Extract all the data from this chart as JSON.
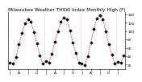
{
  "title": "Milwaukee Weather THSW Index Monthly High (F)",
  "line_color": "#FF0000",
  "marker_color": "#000000",
  "bg_color": "#ffffff",
  "grid_color": "#888888",
  "ylim": [
    10,
    145
  ],
  "yticks": [
    20,
    40,
    60,
    80,
    100,
    120,
    140
  ],
  "values": [
    25,
    22,
    38,
    68,
    95,
    118,
    128,
    122,
    98,
    70,
    42,
    22,
    28,
    25,
    45,
    75,
    100,
    122,
    132,
    128,
    102,
    72,
    48,
    25,
    22,
    18,
    40,
    72,
    105,
    130,
    138,
    128,
    100,
    68,
    44,
    22,
    26,
    24,
    42
  ],
  "n_months": 39,
  "vline_positions": [
    11.5,
    23.5,
    35.5
  ],
  "title_fontsize": 4.2,
  "tick_fontsize": 3.2,
  "ylabel_fontsize": 3.2,
  "linewidth": 0.55,
  "marker_size": 1.8
}
